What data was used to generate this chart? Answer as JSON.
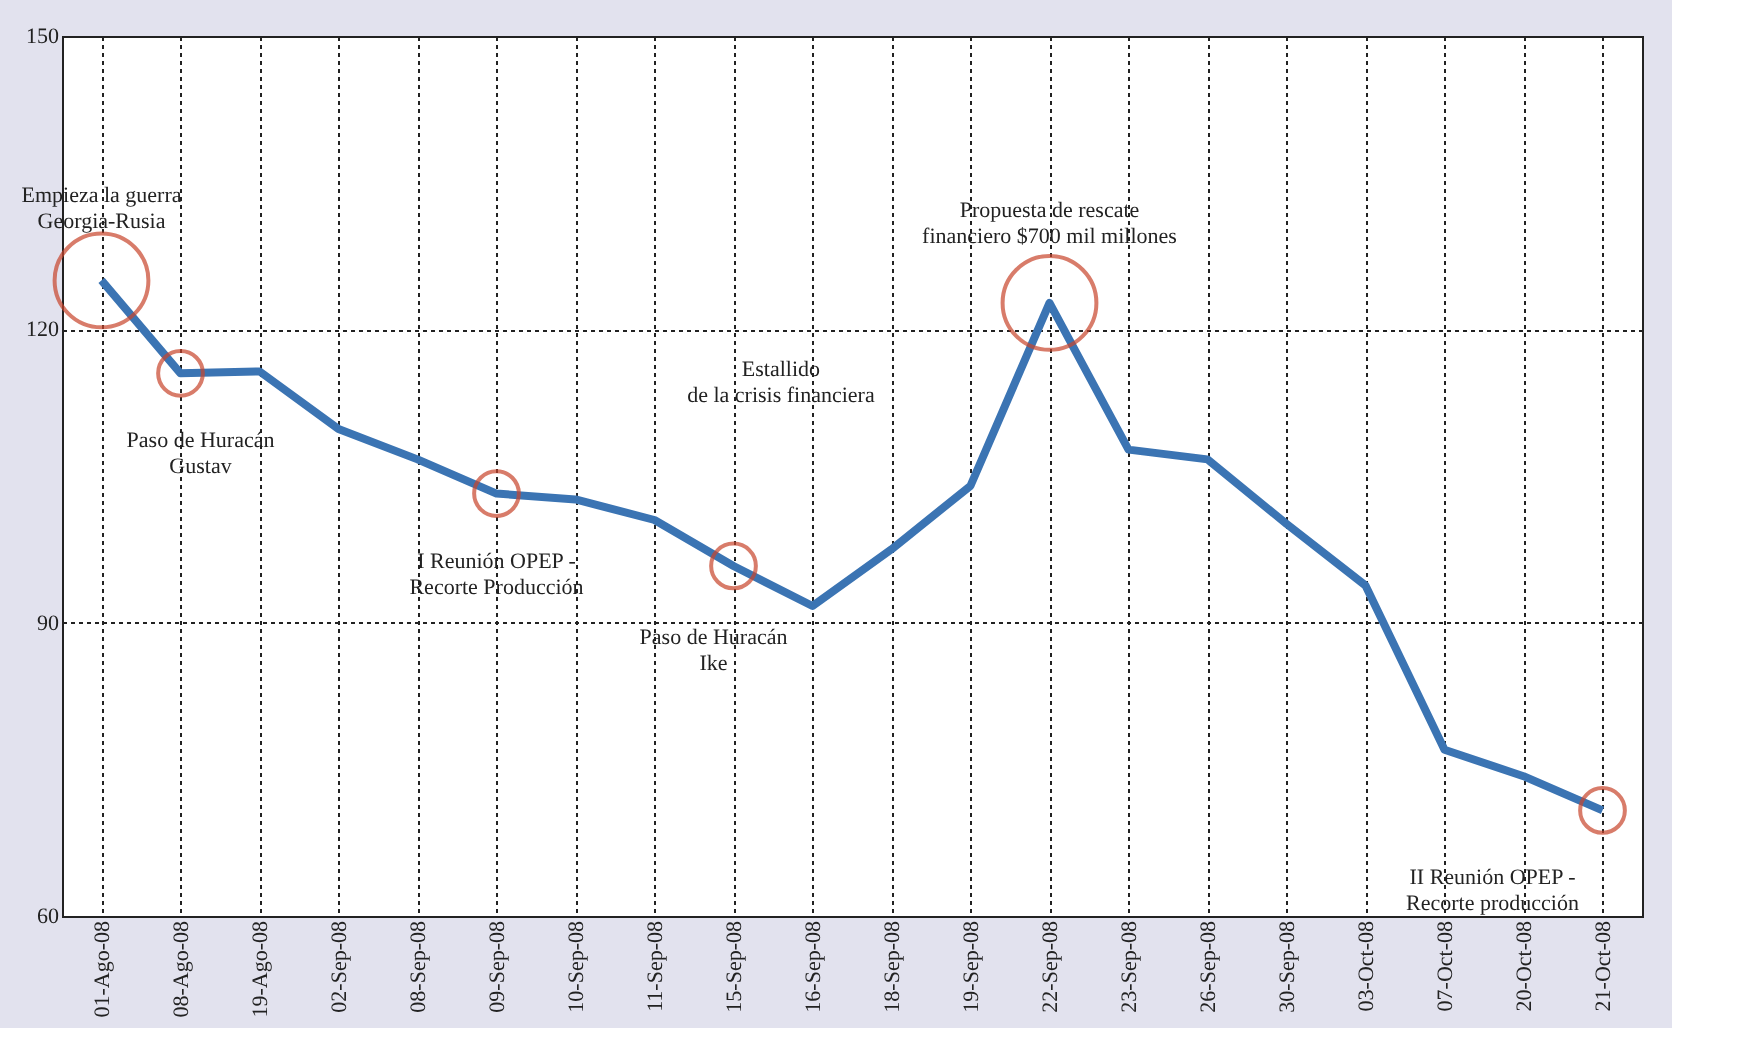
{
  "chart_data": {
    "type": "line",
    "categories": [
      "01-Ago-08",
      "08-Ago-08",
      "19-Ago-08",
      "02-Sep-08",
      "08-Sep-08",
      "09-Sep-08",
      "10-Sep-08",
      "11-Sep-08",
      "15-Sep-08",
      "16-Sep-08",
      "18-Sep-08",
      "19-Sep-08",
      "22-Sep-08",
      "23-Sep-08",
      "26-Sep-08",
      "30-Sep-08",
      "03-Oct-08",
      "07-Oct-08",
      "20-Oct-08",
      "21-Oct-08"
    ],
    "series": [
      {
        "color": "#3b74b3",
        "values": [
          125,
          115.5,
          115.7,
          109.8,
          106.7,
          103.2,
          102.6,
          100.5,
          95.8,
          91.7,
          97.5,
          104,
          122.7,
          107.7,
          106.7,
          100.1,
          93.8,
          77,
          74.3,
          70.8
        ]
      }
    ],
    "ylim": [
      60,
      150
    ],
    "yticks": [
      60,
      90,
      120,
      150
    ],
    "grid": true,
    "marker": "none",
    "line_style": "solid",
    "annotations": [
      {
        "text": "Empieza la guerra\nGeorgia-Rusia",
        "x": "01-Ago-08",
        "y": 125
      },
      {
        "text": "Paso de Huracán\nGustav",
        "x": "08-Ago-08",
        "y": 115.5
      },
      {
        "text": "I Reunión OPEP -\nRecorte Producción",
        "x": "09-Sep-08",
        "y": 103.2
      },
      {
        "text": "Paso de Huracán\nIke",
        "x": "15-Sep-08",
        "y": 95.8
      },
      "Estallido\nde la crisis financiera",
      {
        "text": "Propuesta de rescate\nfinanciero $700 mil millones",
        "x": "22-Sep-08",
        "y": 122.7
      },
      {
        "text": "II Reunión OPEP -\nRecorte producción",
        "x": "21-Oct-08",
        "y": 70.8
      }
    ]
  }
}
